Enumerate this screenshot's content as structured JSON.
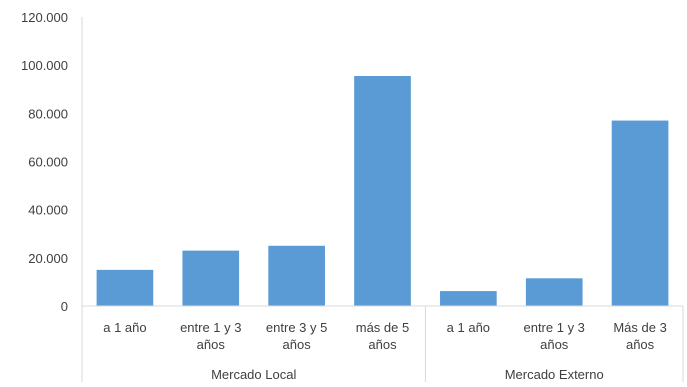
{
  "chart_data": {
    "type": "bar",
    "title": "",
    "xlabel": "",
    "ylabel": "",
    "ylim": [
      0,
      120000
    ],
    "yticks": [
      0,
      20000,
      40000,
      60000,
      80000,
      100000,
      120000
    ],
    "ytick_labels": [
      "0",
      "20.000",
      "40.000",
      "60.000",
      "80.000",
      "100.000",
      "120.000"
    ],
    "grid": false,
    "legend": "none",
    "bar_color": "#5B9BD5",
    "groups": [
      {
        "name": "Mercado Local",
        "categories": [
          [
            "a 1 año"
          ],
          [
            "entre 1 y 3",
            "años"
          ],
          [
            "entre 3 y 5",
            "años"
          ],
          [
            "más de 5",
            "años"
          ]
        ],
        "values": [
          15000,
          23000,
          25000,
          95500
        ]
      },
      {
        "name": "Mercado Externo",
        "categories": [
          [
            "a 1 año"
          ],
          [
            "entre 1 y 3",
            "años"
          ],
          [
            "Más de 3",
            "años"
          ]
        ],
        "values": [
          6200,
          11500,
          77000
        ]
      }
    ]
  }
}
